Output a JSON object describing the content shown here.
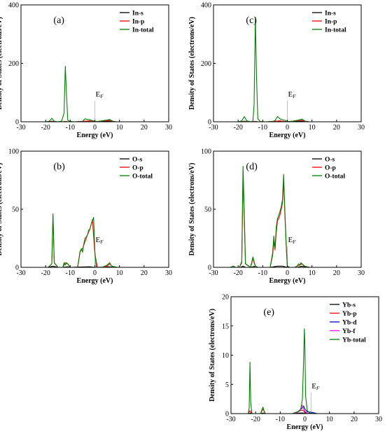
{
  "chart_data": [
    {
      "id": "a",
      "type": "line",
      "panel_label": "(a)",
      "xlabel": "Energy (eV)",
      "ylabel": "Density of States (electrons/eV)",
      "xlim": [
        -30,
        30
      ],
      "ylim": [
        0,
        400
      ],
      "xticks": [
        -30,
        -20,
        -10,
        0,
        10,
        20,
        30
      ],
      "yticks": [
        0,
        200,
        400
      ],
      "fermi_label": "E",
      "fermi_sub": "F",
      "fermi_x": 0,
      "legend_position": "top-right",
      "series": [
        {
          "name": "In-s",
          "color": "#000000",
          "x": [
            -30,
            -19,
            -17.5,
            -16,
            -13,
            -12,
            -11,
            -8,
            -4,
            -2,
            0,
            1,
            3,
            6,
            7,
            9,
            30
          ],
          "y": [
            0,
            0,
            2,
            0,
            0,
            1,
            0,
            0,
            1,
            1,
            0,
            0,
            1,
            2,
            0,
            0,
            0
          ]
        },
        {
          "name": "In-p",
          "color": "#ff0000",
          "x": [
            -30,
            -19,
            -17.5,
            -16,
            -13,
            -12,
            -11,
            -8,
            -4,
            -2,
            0,
            1,
            3,
            5,
            6,
            7,
            9,
            30
          ],
          "y": [
            0,
            0,
            1,
            0,
            0,
            1,
            0,
            0,
            2,
            3,
            0,
            1,
            3,
            4,
            5,
            2,
            0,
            0
          ]
        },
        {
          "name": "In-total",
          "color": "#008000",
          "x": [
            -30,
            -20,
            -18.5,
            -17.5,
            -16.5,
            -15,
            -13.5,
            -12.5,
            -12,
            -11.5,
            -11,
            -10,
            -8,
            -5,
            -4,
            -3,
            -2,
            -1,
            0,
            1,
            2,
            3,
            4,
            5,
            6,
            7,
            8,
            10,
            30
          ],
          "y": [
            0,
            0,
            2,
            12,
            2,
            0,
            2,
            30,
            190,
            90,
            5,
            1,
            0,
            1,
            10,
            8,
            7,
            4,
            2,
            1,
            2,
            3,
            5,
            6,
            8,
            3,
            0,
            0,
            0
          ]
        }
      ]
    },
    {
      "id": "b",
      "type": "line",
      "panel_label": "(b)",
      "xlabel": "Energy (eV)",
      "ylabel": "Density of States (electrons/eV)",
      "xlim": [
        -30,
        30
      ],
      "ylim": [
        0,
        100
      ],
      "xticks": [
        -30,
        -20,
        -10,
        0,
        10,
        20,
        30
      ],
      "yticks": [
        0,
        50,
        100
      ],
      "fermi_label": "E",
      "fermi_sub": "F",
      "fermi_x": 0,
      "legend_position": "top-right",
      "series": [
        {
          "name": "O-s",
          "color": "#000000",
          "x": [
            -30,
            -19,
            -18,
            -17,
            -16,
            -15,
            -13,
            -12,
            -11,
            -10,
            -6,
            -2,
            0,
            4,
            6,
            8,
            30
          ],
          "y": [
            0,
            0,
            0.5,
            1,
            0.5,
            0,
            0,
            0.3,
            0.5,
            0,
            0.3,
            0.5,
            0,
            0.2,
            0.5,
            0,
            0
          ]
        },
        {
          "name": "O-p",
          "color": "#ff0000",
          "x": [
            -30,
            -19,
            -17.5,
            -17,
            -16.5,
            -15,
            -13,
            -12,
            -11,
            -10,
            -7,
            -6,
            -5,
            -4,
            -3,
            -2,
            -1,
            0,
            1,
            3,
            5,
            6,
            7,
            9,
            30
          ],
          "y": [
            0,
            0,
            3,
            44,
            4,
            0,
            0,
            4,
            3,
            0,
            0,
            14,
            16,
            22,
            28,
            33,
            41,
            12,
            0,
            0,
            1,
            3,
            1,
            0,
            0
          ]
        },
        {
          "name": "O-total",
          "color": "#008000",
          "x": [
            -30,
            -19,
            -17.5,
            -17,
            -16.5,
            -15,
            -13,
            -12.5,
            -12,
            -11.5,
            -11,
            -10,
            -7,
            -6,
            -5.5,
            -5,
            -4.5,
            -4,
            -3.5,
            -3,
            -2.5,
            -2,
            -1.5,
            -1,
            -0.5,
            0,
            0.5,
            1,
            3,
            4,
            5,
            5.5,
            6,
            6.5,
            7,
            9,
            30
          ],
          "y": [
            0,
            0,
            3,
            46,
            4,
            0,
            0,
            4,
            2,
            4,
            3,
            0,
            0,
            13,
            16,
            13,
            20,
            25,
            26,
            28,
            32,
            33,
            37,
            40,
            43,
            14,
            1,
            0,
            0,
            1,
            2,
            3,
            4,
            2,
            1,
            0,
            0
          ]
        }
      ]
    },
    {
      "id": "c",
      "type": "line",
      "panel_label": "(c)",
      "xlabel": "Energy (eV)",
      "ylabel": "Density of States (electrons/eV)",
      "xlim": [
        -30,
        30
      ],
      "ylim": [
        0,
        400
      ],
      "xticks": [
        -30,
        -20,
        -10,
        0,
        10,
        20,
        30
      ],
      "yticks": [
        0,
        200,
        400
      ],
      "fermi_label": "E",
      "fermi_sub": "F",
      "fermi_x": 0,
      "legend_position": "top-right",
      "series": [
        {
          "name": "In-s",
          "color": "#000000",
          "x": [
            -30,
            -19,
            -17.5,
            -16,
            -14,
            -13,
            -12,
            -8,
            -5,
            -3,
            -1,
            0,
            3,
            6,
            9,
            30
          ],
          "y": [
            0,
            0,
            2,
            0,
            0,
            1,
            0,
            0,
            1,
            1,
            0,
            0,
            1,
            2,
            0,
            0
          ]
        },
        {
          "name": "In-p",
          "color": "#ff0000",
          "x": [
            -30,
            -19,
            -17.5,
            -16,
            -14,
            -13,
            -12,
            -8,
            -5,
            -3,
            -1,
            0,
            2,
            4,
            6,
            7,
            9,
            30
          ],
          "y": [
            0,
            0,
            1,
            0,
            0,
            1,
            0,
            0,
            2,
            3,
            1,
            0,
            2,
            4,
            5,
            2,
            0,
            0
          ]
        },
        {
          "name": "In-total",
          "color": "#008000",
          "x": [
            -30,
            -20,
            -18.5,
            -17.5,
            -16.5,
            -15,
            -14,
            -13.5,
            -13,
            -12.5,
            -12,
            -11,
            -9,
            -6,
            -5,
            -4,
            -3,
            -2,
            -1,
            0,
            1,
            2,
            3,
            4,
            5,
            6,
            7,
            8,
            10,
            30
          ],
          "y": [
            0,
            0,
            3,
            18,
            3,
            0,
            2,
            60,
            358,
            150,
            10,
            1,
            0,
            1,
            4,
            18,
            10,
            7,
            5,
            2,
            1,
            2,
            3,
            5,
            7,
            9,
            3,
            0,
            0,
            0
          ]
        }
      ]
    },
    {
      "id": "d",
      "type": "line",
      "panel_label": "(d)",
      "xlabel": "Energy (eV)",
      "ylabel": "Density of States (electrons/eV)",
      "xlim": [
        -30,
        30
      ],
      "ylim": [
        0,
        100
      ],
      "xticks": [
        -30,
        -20,
        -10,
        0,
        10,
        20,
        30
      ],
      "yticks": [
        0,
        50,
        100
      ],
      "fermi_label": "E",
      "fermi_sub": "F",
      "fermi_x": 0,
      "legend_position": "top-right",
      "series": [
        {
          "name": "O-s",
          "color": "#000000",
          "x": [
            -30,
            -23,
            -22,
            -21,
            -19,
            -18,
            -17,
            -15,
            -14,
            -13,
            -12,
            -7,
            -4,
            -2,
            0,
            4,
            6,
            8,
            30
          ],
          "y": [
            0,
            0,
            1,
            0,
            0,
            1,
            0,
            0,
            0.5,
            1,
            0,
            0,
            1,
            1,
            0,
            0,
            1,
            0,
            0
          ]
        },
        {
          "name": "O-p",
          "color": "#ff0000",
          "x": [
            -30,
            -19.5,
            -18.5,
            -18,
            -17.5,
            -17,
            -15,
            -14.5,
            -14,
            -13.5,
            -13,
            -12,
            -7,
            -6,
            -5.5,
            -5,
            -4.5,
            -4,
            -3.5,
            -3,
            -2.5,
            -2,
            -1.5,
            -1,
            -0.5,
            0,
            1,
            3,
            4,
            5,
            6,
            7,
            9,
            30
          ],
          "y": [
            0,
            0,
            4,
            80,
            40,
            3,
            0,
            3,
            8,
            4,
            1,
            0,
            0,
            10,
            22,
            15,
            30,
            40,
            42,
            45,
            50,
            55,
            74,
            45,
            20,
            0,
            0,
            0,
            1,
            2,
            3,
            1,
            0,
            0
          ]
        },
        {
          "name": "O-total",
          "color": "#008000",
          "x": [
            -30,
            -23,
            -22,
            -21,
            -19.5,
            -18.5,
            -18,
            -17.5,
            -17,
            -15,
            -14.5,
            -14,
            -13.5,
            -13,
            -12,
            -7,
            -6,
            -5.5,
            -5,
            -4.5,
            -4,
            -3.5,
            -3,
            -2.5,
            -2,
            -1.5,
            -1,
            -0.5,
            0,
            1,
            3,
            4,
            4.5,
            5,
            5.5,
            6,
            7,
            9,
            30
          ],
          "y": [
            0,
            0,
            1,
            0,
            0,
            5,
            87,
            45,
            3,
            0,
            4,
            9,
            5,
            1,
            0,
            0,
            12,
            27,
            16,
            35,
            42,
            45,
            48,
            52,
            58,
            80,
            48,
            22,
            1,
            0,
            0,
            1,
            3,
            2,
            4,
            3,
            1,
            0,
            0
          ]
        }
      ]
    },
    {
      "id": "e",
      "type": "line",
      "panel_label": "(e)",
      "xlabel": "Energy (eV)",
      "ylabel": "Density of States (electrons/eV)",
      "xlim": [
        -30,
        30
      ],
      "ylim": [
        0,
        20
      ],
      "xticks": [
        -30,
        -20,
        -10,
        0,
        10,
        20,
        30
      ],
      "yticks": [
        0,
        5,
        10,
        15,
        20
      ],
      "fermi_label": "E",
      "fermi_sub": "F",
      "fermi_x": 2.5,
      "legend_position": "top-right",
      "series": [
        {
          "name": "Yb-s",
          "color": "#000000",
          "x": [
            -30,
            -23,
            -22,
            -21,
            -18,
            -17,
            -16,
            -5,
            -2,
            0,
            3,
            30
          ],
          "y": [
            0,
            0,
            0.1,
            0,
            0,
            0.1,
            0,
            0,
            0.1,
            0.1,
            0,
            0
          ]
        },
        {
          "name": "Yb-p",
          "color": "#ff0000",
          "x": [
            -30,
            -23,
            -22.3,
            -21.5,
            -18,
            -17,
            -16,
            -5,
            -3,
            -2,
            -1,
            0,
            1,
            3,
            30
          ],
          "y": [
            0,
            0,
            0.5,
            0,
            0,
            0.8,
            0,
            0,
            0.3,
            0.5,
            0.6,
            0.3,
            0,
            0,
            0
          ]
        },
        {
          "name": "Yb-d",
          "color": "#0000cc",
          "x": [
            -30,
            -5,
            -3,
            -2,
            -1,
            -0.5,
            0,
            1,
            3,
            5,
            30
          ],
          "y": [
            0,
            0,
            0.3,
            0.6,
            1.0,
            1.3,
            0.8,
            0.3,
            0.2,
            0,
            0
          ]
        },
        {
          "name": "Yb-f",
          "color": "#ff00ff",
          "x": [
            -30,
            -5,
            -3,
            -2,
            -1.2,
            -0.5,
            0,
            0.5,
            1,
            2,
            30
          ],
          "y": [
            0,
            0,
            0.2,
            0.5,
            1.5,
            0.8,
            0.4,
            0.2,
            0.1,
            0,
            0
          ]
        },
        {
          "name": "Yb-total",
          "color": "#008000",
          "x": [
            -30,
            -23,
            -22.6,
            -22.3,
            -22,
            -21.5,
            -18,
            -17.5,
            -17,
            -16.5,
            -16,
            -5,
            -3,
            -2,
            -1.5,
            -1,
            -0.5,
            -0.2,
            0,
            0.3,
            1,
            2,
            4,
            30
          ],
          "y": [
            0,
            0,
            1,
            8.8,
            2,
            0,
            0,
            0.6,
            1.1,
            0.3,
            0,
            0,
            0.3,
            0.5,
            1,
            2.5,
            9,
            14.5,
            12,
            3,
            0.5,
            0.1,
            0,
            0
          ]
        }
      ]
    }
  ]
}
